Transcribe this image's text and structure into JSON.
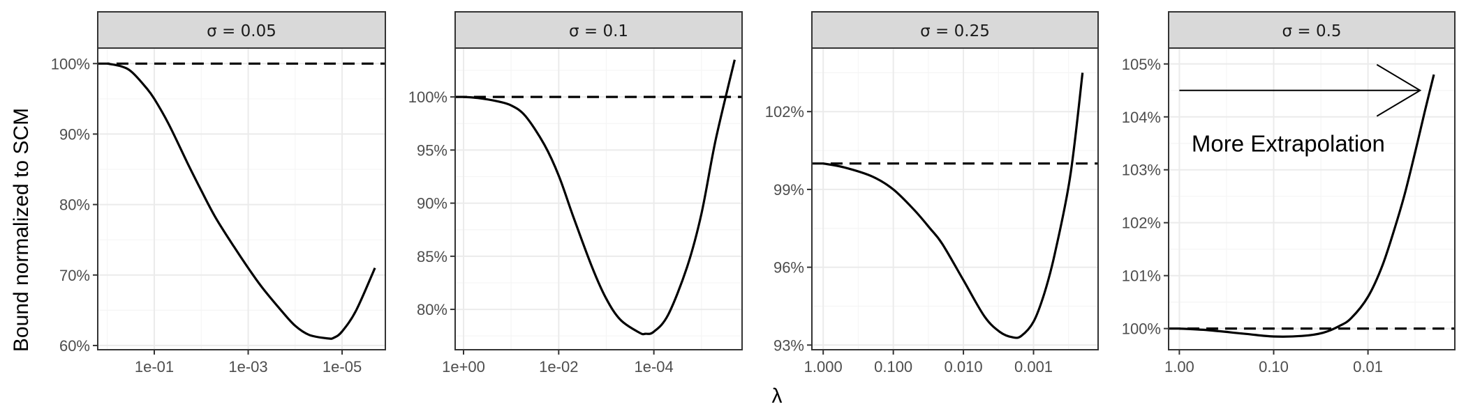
{
  "figure": {
    "y_title": "Bound normalized to SCM",
    "x_title": "λ",
    "colors": {
      "strip_fill": "#d9d9d9",
      "panel_border": "#333333",
      "grid_major": "#ebebeb",
      "grid_minor": "#f5f5f5",
      "curve": "#000000",
      "tick_text": "#4d4d4d"
    }
  },
  "chart_data": [
    {
      "type": "line",
      "title": "σ = 0.05",
      "x_scale": "log10_reversed",
      "xlim": [
        1.6,
        1.2e-06
      ],
      "ylim": [
        59.4,
        102.2
      ],
      "x_ticks": [
        0.1,
        0.001,
        1e-05
      ],
      "x_tick_labels": [
        "1e-01",
        "1e-03",
        "1e-05"
      ],
      "y_ticks": [
        60,
        70,
        80,
        90,
        100
      ],
      "y_tick_labels": [
        "60%",
        "70%",
        "80%",
        "90%",
        "100%"
      ],
      "series": [
        {
          "style": "solid",
          "x": [
            1.0,
            0.5,
            0.3,
            0.15,
            0.1,
            0.05,
            0.02,
            0.01,
            0.005,
            0.002,
            0.001,
            0.0005,
            0.0002,
            0.0001,
            5e-05,
            2e-05,
            1.5e-05,
            1e-05,
            5e-06,
            2e-06
          ],
          "values": [
            100,
            99.6,
            98.8,
            96.6,
            95.0,
            91.5,
            86.0,
            82.0,
            78.2,
            74.0,
            71.0,
            68.2,
            65.0,
            62.8,
            61.5,
            61.0,
            61.1,
            62.0,
            65.0,
            71.0
          ]
        },
        {
          "style": "dashed",
          "x": [
            1.6,
            1.2e-06
          ],
          "values": [
            100,
            100
          ]
        }
      ]
    },
    {
      "type": "line",
      "title": "σ = 0.1",
      "x_scale": "log10_reversed",
      "xlim": [
        1.5,
        1.4e-06
      ],
      "ylim": [
        76.2,
        104.6
      ],
      "x_ticks": [
        1,
        0.01,
        0.0001
      ],
      "x_tick_labels": [
        "1e+00",
        "1e-02",
        "1e-04"
      ],
      "y_ticks": [
        80,
        85,
        90,
        95,
        100
      ],
      "y_tick_labels": [
        "80%",
        "85%",
        "90%",
        "95%",
        "100%"
      ],
      "series": [
        {
          "style": "solid",
          "x": [
            1.0,
            0.5,
            0.2,
            0.1,
            0.05,
            0.02,
            0.01,
            0.005,
            0.002,
            0.001,
            0.0005,
            0.0002,
            0.00015,
            0.0001,
            5e-05,
            2e-05,
            1e-05,
            5e-06,
            2e-06
          ],
          "values": [
            100,
            99.9,
            99.6,
            99.2,
            98.2,
            95.5,
            92.6,
            88.8,
            84.0,
            81.0,
            79.0,
            77.8,
            77.7,
            77.9,
            79.5,
            84.0,
            89.0,
            96.0,
            103.5
          ]
        },
        {
          "style": "dashed",
          "x": [
            1.5,
            1.4e-06
          ],
          "values": [
            100,
            100
          ]
        }
      ]
    },
    {
      "type": "line",
      "title": "σ = 0.25",
      "x_scale": "log10_reversed",
      "xlim": [
        1.45,
        0.00012
      ],
      "ylim": [
        92.82,
        104.45
      ],
      "x_ticks": [
        1,
        0.1,
        0.01,
        0.001
      ],
      "x_tick_labels": [
        "1.000",
        "0.100",
        "0.010",
        "0.001"
      ],
      "y_ticks": [
        93,
        96,
        99,
        102
      ],
      "y_tick_labels": [
        "93%",
        "96%",
        "99%",
        "102%"
      ],
      "series": [
        {
          "style": "solid",
          "x": [
            1.0,
            0.5,
            0.2,
            0.1,
            0.05,
            0.03,
            0.02,
            0.01,
            0.005,
            0.003,
            0.002,
            0.0015,
            0.001,
            0.0007,
            0.0005,
            0.0003,
            0.0002
          ],
          "values": [
            100,
            99.85,
            99.5,
            99.0,
            98.2,
            97.5,
            96.9,
            95.5,
            94.1,
            93.5,
            93.3,
            93.35,
            93.9,
            95.0,
            96.5,
            99.5,
            103.5
          ]
        },
        {
          "style": "dashed",
          "x": [
            1.45,
            0.00012
          ],
          "values": [
            100,
            100
          ]
        }
      ]
    },
    {
      "type": "line",
      "title": "σ = 0.5",
      "x_scale": "log10_reversed",
      "xlim": [
        1.3,
        0.0012
      ],
      "ylim": [
        99.6,
        105.3
      ],
      "x_ticks": [
        1,
        0.1,
        0.01
      ],
      "x_tick_labels": [
        "1.00",
        "0.10",
        "0.01"
      ],
      "y_ticks": [
        100,
        101,
        102,
        103,
        104,
        105
      ],
      "y_tick_labels": [
        "100%",
        "101%",
        "102%",
        "103%",
        "104%",
        "105%"
      ],
      "annotations": [
        {
          "type": "text",
          "text": "More Extrapolation",
          "x": 0.07,
          "y": 103.5
        },
        {
          "type": "arrow",
          "x_from": 1.0,
          "x_to": 0.0028,
          "y": 104.5
        }
      ],
      "series": [
        {
          "style": "solid",
          "x": [
            1.0,
            0.5,
            0.2,
            0.1,
            0.05,
            0.03,
            0.02,
            0.015,
            0.01,
            0.007,
            0.005,
            0.004,
            0.003,
            0.0025,
            0.002
          ],
          "values": [
            100,
            99.97,
            99.9,
            99.85,
            99.86,
            99.92,
            100.05,
            100.2,
            100.6,
            101.2,
            102.0,
            102.6,
            103.5,
            104.1,
            104.8
          ]
        },
        {
          "style": "dashed",
          "x": [
            1.3,
            0.0012
          ],
          "values": [
            100,
            100
          ]
        }
      ]
    }
  ]
}
